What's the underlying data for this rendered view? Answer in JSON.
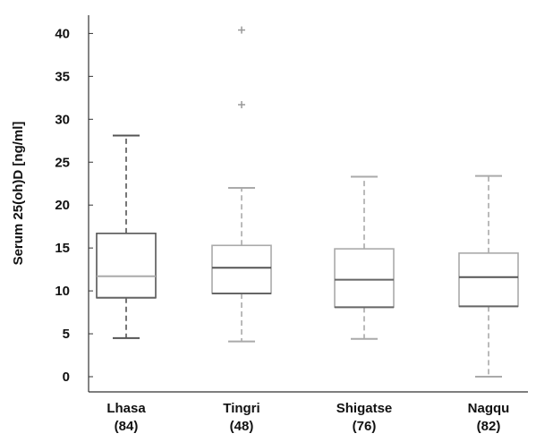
{
  "chart_data": {
    "type": "boxplot",
    "ylabel": "Serum 25(oh)D [ng/ml]",
    "ylim": [
      -2,
      42
    ],
    "yticks": [
      "0",
      "5",
      "10",
      "15",
      "20",
      "25",
      "30",
      "35",
      "40"
    ],
    "grid": false,
    "categories": [
      {
        "name": "Lhasa",
        "n": "(84)"
      },
      {
        "name": "Tingri",
        "n": "(48)"
      },
      {
        "name": "Shigatse",
        "n": "(76)"
      },
      {
        "name": "Nagqu",
        "n": "(82)"
      }
    ],
    "boxes": [
      {
        "category": "Lhasa",
        "whisker_low": 4.5,
        "q1": 9.2,
        "median": 11.7,
        "q3": 16.7,
        "whisker_high": 28.1,
        "outliers": [],
        "color": "#555555",
        "median_color": "#aaaaaa"
      },
      {
        "category": "Tingri",
        "whisker_low": 4.1,
        "q1": 9.7,
        "median": 12.7,
        "q3": 15.3,
        "whisker_high": 22.0,
        "outliers": [
          31.7,
          40.4
        ],
        "color": "#aaaaaa",
        "median_color": "#555555"
      },
      {
        "category": "Shigatse",
        "whisker_low": 4.4,
        "q1": 8.1,
        "median": 11.3,
        "q3": 14.9,
        "whisker_high": 23.3,
        "outliers": [],
        "color": "#aaaaaa",
        "median_color": "#666666"
      },
      {
        "category": "Nagqu",
        "whisker_low": 0.0,
        "q1": 8.2,
        "median": 11.6,
        "q3": 14.4,
        "whisker_high": 23.4,
        "outliers": [],
        "color": "#aaaaaa",
        "median_color": "#555555"
      }
    ]
  }
}
